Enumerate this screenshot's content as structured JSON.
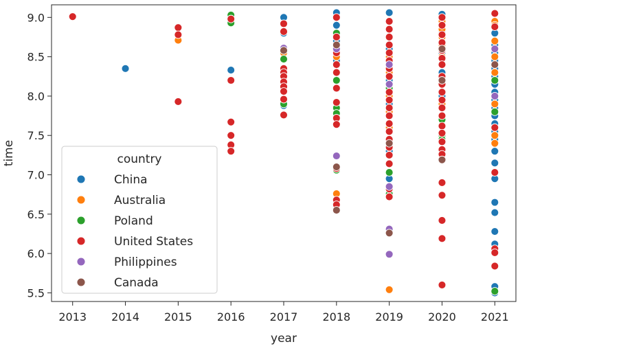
{
  "chart_data": {
    "type": "scatter",
    "title": "",
    "xlabel": "year",
    "ylabel": "time",
    "xlim": [
      2012.6,
      2021.4
    ],
    "ylim": [
      5.39,
      9.16
    ],
    "x_ticks": [
      "2013",
      "2014",
      "2015",
      "2016",
      "2017",
      "2018",
      "2019",
      "2020",
      "2021"
    ],
    "y_ticks": [
      "5.5",
      "6.0",
      "6.5",
      "7.0",
      "7.5",
      "8.0",
      "8.5",
      "9.0"
    ],
    "grid": false,
    "legend": {
      "title": "country",
      "placement": "lower-left",
      "entries": [
        "China",
        "Australia",
        "Poland",
        "United States",
        "Philippines",
        "Canada"
      ]
    },
    "colors": {
      "China": "#1f77b4",
      "Australia": "#ff7f0e",
      "Poland": "#2ca02c",
      "United States": "#d62728",
      "Philippines": "#9467bd",
      "Canada": "#8c564b"
    },
    "series": [
      {
        "name": "China",
        "points": [
          [
            2014,
            8.35
          ],
          [
            2016,
            8.33
          ],
          [
            2017,
            9.0
          ],
          [
            2017,
            8.8
          ],
          [
            2017,
            7.88
          ],
          [
            2018,
            9.06
          ],
          [
            2018,
            8.9
          ],
          [
            2018,
            8.7
          ],
          [
            2018,
            8.45
          ],
          [
            2018,
            6.56
          ],
          [
            2019,
            9.06
          ],
          [
            2019,
            8.6
          ],
          [
            2019,
            8.2
          ],
          [
            2019,
            7.9
          ],
          [
            2019,
            7.6
          ],
          [
            2019,
            7.3
          ],
          [
            2019,
            6.95
          ],
          [
            2020,
            9.04
          ],
          [
            2020,
            8.8
          ],
          [
            2020,
            8.55
          ],
          [
            2020,
            8.3
          ],
          [
            2020,
            8.0
          ],
          [
            2020,
            7.7
          ],
          [
            2021,
            8.95
          ],
          [
            2021,
            8.8
          ],
          [
            2021,
            8.65
          ],
          [
            2021,
            8.55
          ],
          [
            2021,
            8.45
          ],
          [
            2021,
            8.35
          ],
          [
            2021,
            8.25
          ],
          [
            2021,
            8.15
          ],
          [
            2021,
            8.05
          ],
          [
            2021,
            7.95
          ],
          [
            2021,
            7.85
          ],
          [
            2021,
            7.75
          ],
          [
            2021,
            7.65
          ],
          [
            2021,
            7.55
          ],
          [
            2021,
            7.45
          ],
          [
            2021,
            7.3
          ],
          [
            2021,
            7.15
          ],
          [
            2021,
            6.95
          ],
          [
            2021,
            6.65
          ],
          [
            2021,
            6.52
          ],
          [
            2021,
            6.28
          ],
          [
            2021,
            6.12
          ],
          [
            2021,
            5.58
          ],
          [
            2021,
            5.5
          ]
        ]
      },
      {
        "name": "Australia",
        "points": [
          [
            2015,
            8.71
          ],
          [
            2017,
            8.55
          ],
          [
            2018,
            8.5
          ],
          [
            2018,
            6.76
          ],
          [
            2019,
            8.5
          ],
          [
            2019,
            8.3
          ],
          [
            2019,
            8.0
          ],
          [
            2019,
            7.8
          ],
          [
            2019,
            7.6
          ],
          [
            2019,
            5.54
          ],
          [
            2020,
            8.95
          ],
          [
            2020,
            8.85
          ],
          [
            2020,
            8.75
          ],
          [
            2020,
            8.65
          ],
          [
            2020,
            8.5
          ],
          [
            2020,
            8.2
          ],
          [
            2020,
            7.9
          ],
          [
            2021,
            8.95
          ],
          [
            2021,
            8.9
          ],
          [
            2021,
            8.7
          ],
          [
            2021,
            8.5
          ],
          [
            2021,
            8.3
          ],
          [
            2021,
            7.9
          ],
          [
            2021,
            7.5
          ],
          [
            2021,
            7.4
          ]
        ]
      },
      {
        "name": "Poland",
        "points": [
          [
            2016,
            9.03
          ],
          [
            2016,
            8.93
          ],
          [
            2017,
            8.6
          ],
          [
            2017,
            8.47
          ],
          [
            2017,
            7.95
          ],
          [
            2017,
            7.9
          ],
          [
            2018,
            8.8
          ],
          [
            2018,
            8.2
          ],
          [
            2018,
            7.85
          ],
          [
            2018,
            7.78
          ],
          [
            2018,
            7.06
          ],
          [
            2019,
            8.1
          ],
          [
            2019,
            7.65
          ],
          [
            2019,
            7.03
          ],
          [
            2019,
            6.76
          ],
          [
            2020,
            7.7
          ],
          [
            2020,
            7.5
          ],
          [
            2020,
            7.45
          ],
          [
            2021,
            8.2
          ],
          [
            2021,
            7.8
          ],
          [
            2021,
            5.52
          ]
        ]
      },
      {
        "name": "United States",
        "points": [
          [
            2013,
            9.01
          ],
          [
            2015,
            8.87
          ],
          [
            2015,
            8.78
          ],
          [
            2015,
            7.93
          ],
          [
            2016,
            8.98
          ],
          [
            2016,
            8.2
          ],
          [
            2016,
            7.67
          ],
          [
            2016,
            7.5
          ],
          [
            2016,
            7.38
          ],
          [
            2016,
            7.3
          ],
          [
            2017,
            8.92
          ],
          [
            2017,
            8.82
          ],
          [
            2017,
            8.35
          ],
          [
            2017,
            8.3
          ],
          [
            2017,
            8.25
          ],
          [
            2017,
            8.18
          ],
          [
            2017,
            8.12
          ],
          [
            2017,
            8.06
          ],
          [
            2017,
            7.96
          ],
          [
            2017,
            7.76
          ],
          [
            2018,
            9.0
          ],
          [
            2018,
            8.75
          ],
          [
            2018,
            8.55
          ],
          [
            2018,
            8.4
          ],
          [
            2018,
            8.3
          ],
          [
            2018,
            8.1
          ],
          [
            2018,
            7.92
          ],
          [
            2018,
            7.72
          ],
          [
            2018,
            7.64
          ],
          [
            2018,
            7.08
          ],
          [
            2018,
            6.68
          ],
          [
            2018,
            6.62
          ],
          [
            2019,
            8.95
          ],
          [
            2019,
            8.85
          ],
          [
            2019,
            8.75
          ],
          [
            2019,
            8.65
          ],
          [
            2019,
            8.55
          ],
          [
            2019,
            8.45
          ],
          [
            2019,
            8.35
          ],
          [
            2019,
            8.25
          ],
          [
            2019,
            8.15
          ],
          [
            2019,
            8.05
          ],
          [
            2019,
            7.95
          ],
          [
            2019,
            7.85
          ],
          [
            2019,
            7.75
          ],
          [
            2019,
            7.65
          ],
          [
            2019,
            7.55
          ],
          [
            2019,
            7.45
          ],
          [
            2019,
            7.35
          ],
          [
            2019,
            7.25
          ],
          [
            2019,
            7.14
          ],
          [
            2019,
            6.82
          ],
          [
            2019,
            6.72
          ],
          [
            2020,
            9.0
          ],
          [
            2020,
            8.9
          ],
          [
            2020,
            8.78
          ],
          [
            2020,
            8.68
          ],
          [
            2020,
            8.58
          ],
          [
            2020,
            8.48
          ],
          [
            2020,
            8.4
          ],
          [
            2020,
            8.25
          ],
          [
            2020,
            8.15
          ],
          [
            2020,
            8.05
          ],
          [
            2020,
            7.95
          ],
          [
            2020,
            7.85
          ],
          [
            2020,
            7.75
          ],
          [
            2020,
            7.62
          ],
          [
            2020,
            7.53
          ],
          [
            2020,
            7.42
          ],
          [
            2020,
            7.32
          ],
          [
            2020,
            7.26
          ],
          [
            2020,
            6.9
          ],
          [
            2020,
            6.74
          ],
          [
            2020,
            6.42
          ],
          [
            2020,
            6.19
          ],
          [
            2020,
            5.6
          ],
          [
            2021,
            9.05
          ],
          [
            2021,
            8.88
          ],
          [
            2021,
            7.6
          ],
          [
            2021,
            7.03
          ],
          [
            2021,
            6.06
          ],
          [
            2021,
            6.01
          ],
          [
            2021,
            5.84
          ]
        ]
      },
      {
        "name": "Philippines",
        "points": [
          [
            2017,
            8.61
          ],
          [
            2018,
            8.6
          ],
          [
            2018,
            7.24
          ],
          [
            2019,
            8.4
          ],
          [
            2019,
            8.15
          ],
          [
            2019,
            6.85
          ],
          [
            2019,
            6.31
          ],
          [
            2019,
            5.99
          ],
          [
            2021,
            8.6
          ],
          [
            2021,
            8.0
          ]
        ]
      },
      {
        "name": "Canada",
        "points": [
          [
            2017,
            8.58
          ],
          [
            2018,
            8.65
          ],
          [
            2018,
            7.1
          ],
          [
            2018,
            6.55
          ],
          [
            2019,
            7.4
          ],
          [
            2019,
            6.26
          ],
          [
            2020,
            8.6
          ],
          [
            2020,
            8.2
          ],
          [
            2020,
            7.19
          ],
          [
            2021,
            8.4
          ]
        ]
      }
    ]
  }
}
